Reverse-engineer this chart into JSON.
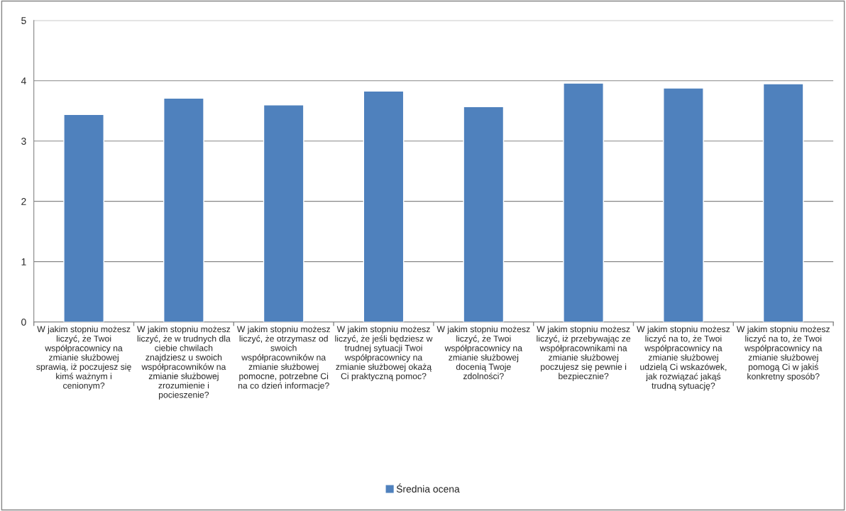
{
  "chart_data": {
    "type": "bar",
    "categories": [
      "W jakim stopniu możesz\nliczyć, że Twoi\nwspółpracownicy na\nzmianie służbowej\nsprawią, iż poczujesz się\nkimś ważnym i\ncenionym?",
      "W jakim stopniu możesz\nliczyć, że w trudnych dla\nciebie chwilach\nznajdziesz u swoich\nwspółpracowników na\nzmianie służbowej\nzrozumienie i\npocieszenie?",
      "W jakim stopniu możesz\nliczyć, że otrzymasz od\nswoich\nwspółpracowników na\nzmianie służbowej\npomocne, potrzebne Ci\nna co dzień informacje?",
      "W jakim stopniu możesz\nliczyć, że jeśli będziesz w\ntrudnej sytuacji Twoi\nwspółpracownicy na\nzmianie służbowej okażą\nCi praktyczną pomoc?",
      "W jakim stopniu możesz\nliczyć, że Twoi\nwspółpracownicy na\nzmianie służbowej\ndocenią Twoje\nzdolności?",
      "W jakim stopniu możesz\nliczyć, iż przebywając ze\nwspółpracownikami na\nzmianie służbowej\npoczujesz się pewnie i\nbezpiecznie?",
      "W jakim stopniu możesz\nliczyć na to, że Twoi\nwspółpracownicy na\nzmianie służbowej\nudzielą Ci wskazówek,\njak rozwiązać jakąś\ntrudną sytuację?",
      "W jakim stopniu możesz\nliczyć na to, że Twoi\nwspółpracownicy na\nzmianie służbowej\npomogą Ci w jakiś\nkonkretny sposób?"
    ],
    "series": [
      {
        "name": "Średnia ocena",
        "color": "#4f81bd",
        "values": [
          3.44,
          3.71,
          3.6,
          3.83,
          3.57,
          3.96,
          3.88,
          3.95
        ]
      }
    ],
    "ylim": [
      0,
      5
    ],
    "yticks": [
      0,
      1,
      2,
      3,
      4,
      5
    ],
    "grid": "y",
    "legend": "bottom"
  }
}
